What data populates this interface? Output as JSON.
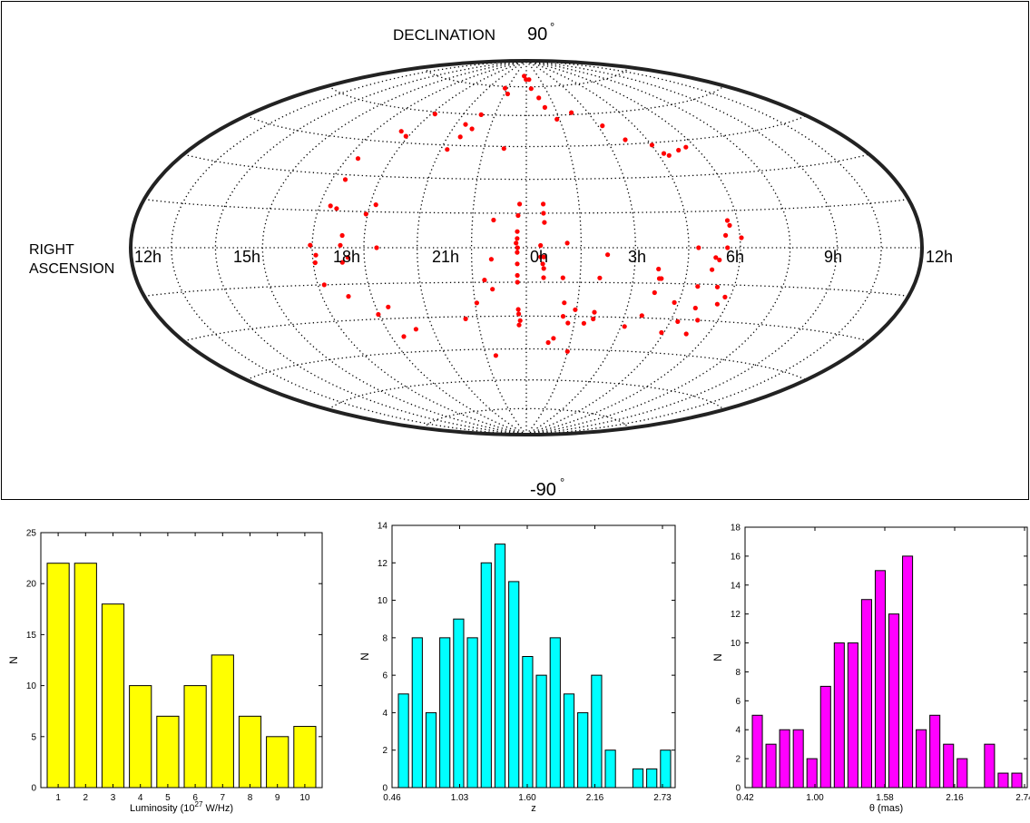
{
  "chart_data": [
    {
      "type": "scatter",
      "projection": "hammer-aitoff",
      "labels": {
        "top": "DECLINATION 90",
        "top_prefix": "DECLINATION",
        "top_value": "90",
        "bottom_value": "-90",
        "degree_symbol": "°",
        "ra_label_line1": "RIGHT",
        "ra_label_line2": "ASCENSION"
      },
      "ra_ticks": [
        "12h",
        "15h",
        "18h",
        "21h",
        "0h",
        "3h",
        "6h",
        "9h",
        "12h"
      ],
      "meridian_step_hours": 1.5,
      "parallel_step_deg": 15,
      "grid": true,
      "point_color": "#ff0000",
      "points": [
        [
          -0.03,
          79
        ],
        [
          -0.29,
          81
        ],
        [
          0.29,
          79
        ],
        [
          0.38,
          74
        ],
        [
          0.78,
          69
        ],
        [
          0.98,
          64
        ],
        [
          -1.28,
          71
        ],
        [
          -1.7,
          74
        ],
        [
          2.2,
          61
        ],
        [
          1.38,
          58
        ],
        [
          -2.15,
          60
        ],
        [
          -2.59,
          55
        ],
        [
          -2.77,
          43
        ],
        [
          -2.22,
          53
        ],
        [
          -2.52,
          49
        ],
        [
          3.19,
          54
        ],
        [
          3.69,
          47
        ],
        [
          4.52,
          44
        ],
        [
          4.71,
          40
        ],
        [
          4.84,
          39
        ],
        [
          5.31,
          41
        ],
        [
          5.66,
          42
        ],
        [
          -4.33,
          59
        ],
        [
          -4.96,
          50
        ],
        [
          -4.6,
          48
        ],
        [
          -5.63,
          37
        ],
        [
          -0.79,
          44
        ],
        [
          0.48,
          19
        ],
        [
          0.48,
          15
        ],
        [
          0.5,
          11
        ],
        [
          -0.19,
          19
        ],
        [
          -0.23,
          14
        ],
        [
          -0.91,
          12
        ],
        [
          -0.25,
          7
        ],
        [
          -0.25,
          4
        ],
        [
          -0.28,
          2
        ],
        [
          -0.24,
          0
        ],
        [
          -0.25,
          -2
        ],
        [
          -0.25,
          -7
        ],
        [
          0.39,
          1
        ],
        [
          0.39,
          -4
        ],
        [
          0.48,
          -4
        ],
        [
          0.45,
          -7
        ],
        [
          0.48,
          -9
        ],
        [
          0.48,
          -13
        ],
        [
          -0.25,
          -12
        ],
        [
          -0.25,
          -15
        ],
        [
          -0.96,
          -5
        ],
        [
          -1.17,
          -14
        ],
        [
          1.12,
          2
        ],
        [
          1.02,
          -13
        ],
        [
          2.05,
          -28
        ],
        [
          2.06,
          -31
        ],
        [
          2.23,
          -3
        ],
        [
          2.05,
          -13
        ],
        [
          1.11,
          -24
        ],
        [
          1.46,
          -27
        ],
        [
          -0.24,
          -27
        ],
        [
          -0.23,
          -29
        ],
        [
          -0.19,
          -32
        ],
        [
          -0.23,
          -34
        ],
        [
          -0.96,
          -18
        ],
        [
          -1.45,
          -24
        ],
        [
          -1.87,
          -31
        ],
        [
          1.12,
          -30
        ],
        [
          1.3,
          -33
        ],
        [
          1.8,
          -33
        ],
        [
          0.91,
          -40
        ],
        [
          0.75,
          -42
        ],
        [
          1.49,
          -46
        ],
        [
          3.8,
          -13
        ],
        [
          3.69,
          -19
        ],
        [
          4.37,
          -23
        ],
        [
          3.74,
          -13
        ],
        [
          3.68,
          -9
        ],
        [
          3.53,
          -29
        ],
        [
          3.12,
          -34
        ],
        [
          4.42,
          -36
        ],
        [
          -1.14,
          -48
        ],
        [
          4.91,
          -16
        ],
        [
          4.78,
          0
        ],
        [
          5.4,
          -5
        ],
        [
          6.04,
          4
        ],
        [
          5.58,
          5
        ],
        [
          5.62,
          0
        ],
        [
          5.29,
          -4
        ],
        [
          -5.14,
          5
        ],
        [
          -5.18,
          1
        ],
        [
          -6.06,
          1
        ],
        [
          -5.9,
          -3
        ],
        [
          -5.94,
          -6
        ],
        [
          -4.14,
          0
        ],
        [
          -4.97,
          -4
        ],
        [
          -5.14,
          -6
        ],
        [
          -4.33,
          18
        ],
        [
          -5.67,
          17
        ],
        [
          -5.46,
          16
        ],
        [
          -5.2,
          -20
        ],
        [
          -5.81,
          -15
        ],
        [
          -4.52,
          -28
        ],
        [
          -4.12,
          -25
        ],
        [
          -3.55,
          -35
        ],
        [
          -5.58,
          28
        ],
        [
          -4.55,
          14
        ],
        [
          -4.08,
          -38
        ],
        [
          5.7,
          11
        ],
        [
          5.74,
          9
        ],
        [
          5.22,
          -9
        ],
        [
          5.5,
          -16
        ],
        [
          5.08,
          -25
        ],
        [
          5.35,
          -30
        ],
        [
          4.74,
          -31
        ],
        [
          5.27,
          -36
        ],
        [
          5.7,
          -23
        ],
        [
          5.84,
          -20
        ]
      ]
    },
    {
      "type": "bar",
      "xlabel": "Luminosity (10",
      "xlabel_sup": "27",
      "xlabel_tail": " W/Hz)",
      "ylabel": "N",
      "categories": [
        "1",
        "2",
        "3",
        "4",
        "5",
        "6",
        "7",
        "8",
        "9",
        "10"
      ],
      "values": [
        22,
        22,
        18,
        10,
        7,
        10,
        13,
        7,
        5,
        6
      ],
      "ylim": [
        0,
        25
      ],
      "yticks": [
        "0",
        "5",
        "10",
        "15",
        "20",
        "25"
      ],
      "color": "#ffff00"
    },
    {
      "type": "bar",
      "xlabel": "z",
      "ylabel": "N",
      "xticks": [
        "0.46",
        "1.03",
        "1.60",
        "2.16",
        "2.73"
      ],
      "values": [
        5,
        8,
        4,
        8,
        9,
        8,
        12,
        13,
        11,
        7,
        6,
        8,
        5,
        4,
        6,
        2,
        0,
        1,
        1,
        2
      ],
      "ylim": [
        0,
        14
      ],
      "yticks": [
        "0",
        "2",
        "4",
        "6",
        "8",
        "10",
        "12",
        "14"
      ],
      "color": "#00ffff"
    },
    {
      "type": "bar",
      "xlabel": "θ (mas)",
      "ylabel": "N",
      "xticks": [
        "0.42",
        "1.00",
        "1.58",
        "2.16",
        "2.74"
      ],
      "values": [
        5,
        3,
        4,
        4,
        2,
        7,
        10,
        10,
        13,
        15,
        12,
        16,
        4,
        5,
        3,
        2,
        0,
        3,
        1,
        1
      ],
      "ylim": [
        0,
        18
      ],
      "yticks": [
        "0",
        "2",
        "4",
        "6",
        "8",
        "10",
        "12",
        "14",
        "16",
        "18"
      ],
      "color": "#ff00ff"
    }
  ]
}
